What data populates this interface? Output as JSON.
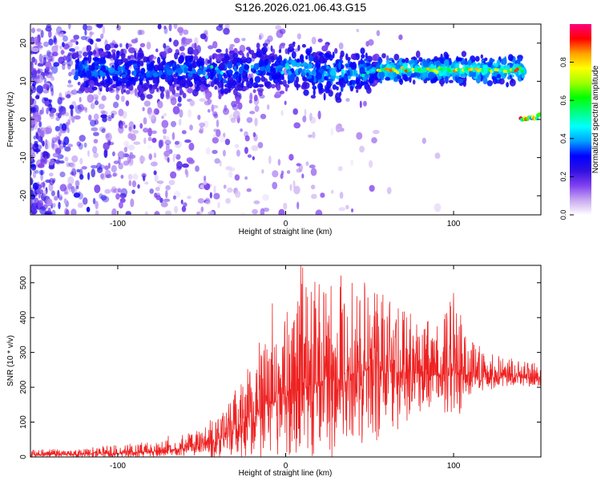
{
  "title": "S126.2026.021.06.43.G15",
  "chart_data": [
    {
      "type": "heatmap",
      "name": "spectrogram",
      "xlabel": "Height of straight line (km)",
      "ylabel": "Frequency (Hz)",
      "xlim": [
        -152,
        152
      ],
      "ylim": [
        -25,
        25
      ],
      "xticks": [
        -100,
        0,
        100
      ],
      "yticks": [
        -20,
        -10,
        0,
        10,
        20
      ],
      "colorbar": {
        "label": "Normalized spectral amplitude",
        "range": [
          0,
          1
        ],
        "ticks": [
          "0.0",
          "0.2",
          "0.4",
          "0.6",
          "0.8"
        ],
        "tick_values": [
          0.0,
          0.2,
          0.4,
          0.6,
          0.8
        ],
        "colors": [
          "#ffffff",
          "#c8a8f0",
          "#8040f0",
          "#3010e0",
          "#0000ff",
          "#00a0ff",
          "#00ffff",
          "#00ff80",
          "#00ff00",
          "#a0ff00",
          "#ffff00",
          "#ffa000",
          "#ff0000",
          "#ff0080"
        ]
      },
      "ridge": {
        "description": "dominant frequency track",
        "points": [
          [
            -110,
            13
          ],
          [
            -80,
            12
          ],
          [
            -60,
            13
          ],
          [
            -40,
            12
          ],
          [
            -20,
            13
          ],
          [
            -5,
            13
          ],
          [
            0,
            14
          ],
          [
            10,
            13
          ],
          [
            20,
            12
          ],
          [
            40,
            12
          ],
          [
            60,
            13
          ],
          [
            80,
            13
          ],
          [
            100,
            13
          ],
          [
            120,
            13
          ],
          [
            140,
            13
          ]
        ],
        "secondary": [
          [
            140,
            0
          ],
          [
            152,
            1
          ]
        ]
      }
    },
    {
      "type": "line",
      "name": "snr",
      "xlabel": "Height of straight line (km)",
      "ylabel": "SNR (10 * v/v)",
      "xlim": [
        -152,
        152
      ],
      "ylim": [
        0,
        550
      ],
      "xticks": [
        -100,
        0,
        100
      ],
      "yticks": [
        0,
        100,
        200,
        300,
        400,
        500
      ],
      "color": "#ee2222",
      "envelope": {
        "x": [
          -152,
          -120,
          -100,
          -80,
          -60,
          -40,
          -30,
          -20,
          -10,
          0,
          10,
          20,
          30,
          40,
          50,
          60,
          70,
          80,
          90,
          100,
          110,
          120,
          130,
          140,
          152
        ],
        "mean": [
          8,
          8,
          10,
          15,
          25,
          45,
          70,
          110,
          150,
          180,
          190,
          215,
          230,
          240,
          250,
          245,
          245,
          240,
          235,
          240,
          235,
          230,
          230,
          228,
          225
        ],
        "max": [
          20,
          25,
          35,
          45,
          65,
          110,
          190,
          290,
          380,
          420,
          550,
          500,
          520,
          500,
          480,
          470,
          430,
          400,
          380,
          470,
          340,
          310,
          290,
          280,
          265
        ],
        "min": [
          0,
          0,
          0,
          0,
          0,
          0,
          0,
          0,
          0,
          0,
          0,
          0,
          0,
          10,
          20,
          40,
          80,
          120,
          160,
          80,
          180,
          190,
          200,
          200,
          205
        ]
      },
      "peaks": [
        [
          -70,
          60
        ],
        [
          -45,
          105
        ],
        [
          -30,
          190
        ],
        [
          -17,
          250
        ],
        [
          -8,
          440
        ],
        [
          4,
          370
        ],
        [
          9,
          550
        ],
        [
          20,
          495
        ],
        [
          27,
          490
        ],
        [
          33,
          520
        ],
        [
          47,
          500
        ],
        [
          53,
          470
        ],
        [
          58,
          465
        ],
        [
          62,
          445
        ],
        [
          72,
          400
        ],
        [
          78,
          380
        ],
        [
          100,
          470
        ],
        [
          107,
          345
        ]
      ]
    }
  ]
}
